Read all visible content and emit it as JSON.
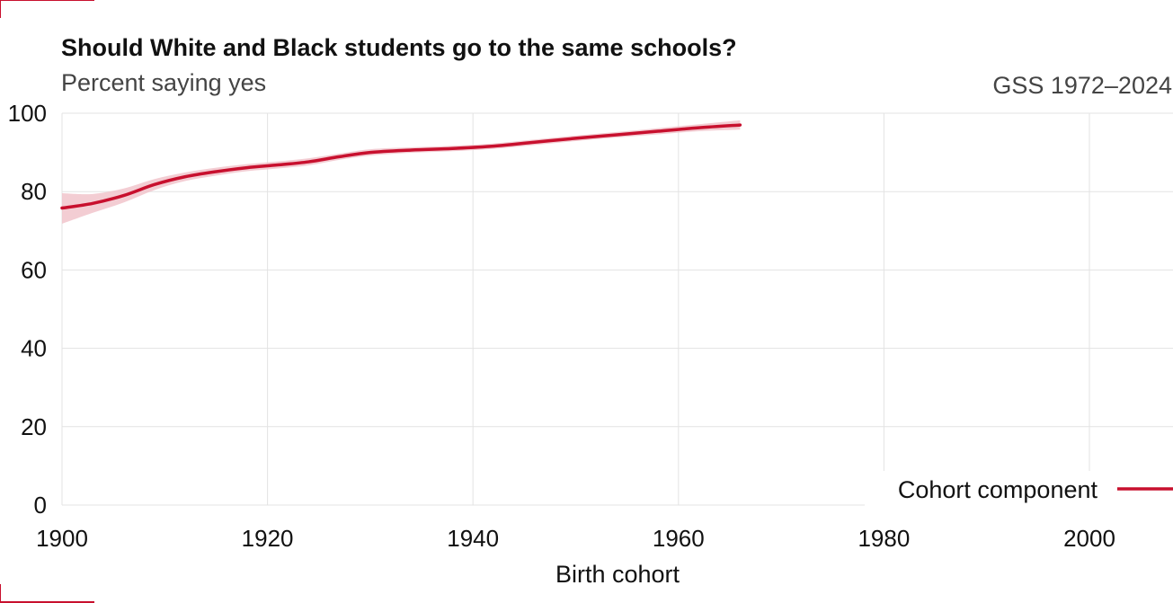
{
  "colors": {
    "series": "#c8102e",
    "band": "#f1c4cb",
    "grid": "#e3e3e3"
  },
  "chart_data": {
    "type": "line",
    "title": "Should White and Black students go to the same schools?",
    "subtitle": "Percent saying yes",
    "source": "GSS 1972–2024",
    "xlabel": "Birth cohort",
    "ylabel": "",
    "xlim": [
      1900,
      2008
    ],
    "ylim": [
      0,
      100
    ],
    "xticks": [
      1900,
      1920,
      1940,
      1960,
      1980,
      2000
    ],
    "yticks": [
      0,
      20,
      40,
      60,
      80,
      100
    ],
    "grid": true,
    "legend_position": "bottom-right",
    "series": [
      {
        "name": "Cohort component",
        "x": [
          1900,
          1903,
          1906,
          1909,
          1912,
          1915,
          1918,
          1921,
          1924,
          1927,
          1930,
          1934,
          1938,
          1942,
          1946,
          1950,
          1954,
          1958,
          1962,
          1966
        ],
        "y": [
          75.8,
          77.0,
          79.0,
          81.8,
          83.8,
          85.1,
          86.1,
          86.8,
          87.6,
          88.9,
          90.0,
          90.6,
          91.0,
          91.6,
          92.6,
          93.6,
          94.5,
          95.4,
          96.3,
          97.0
        ],
        "lower": [
          71.8,
          74.6,
          77.2,
          80.4,
          82.7,
          84.1,
          85.2,
          85.9,
          86.7,
          88.1,
          89.2,
          89.9,
          90.3,
          90.9,
          91.9,
          92.9,
          93.8,
          94.6,
          95.4,
          95.8
        ],
        "upper": [
          79.6,
          79.4,
          80.8,
          83.2,
          84.9,
          86.1,
          87.0,
          87.7,
          88.5,
          89.7,
          90.8,
          91.3,
          91.7,
          92.3,
          93.3,
          94.3,
          95.2,
          96.2,
          97.2,
          98.2
        ]
      }
    ]
  }
}
